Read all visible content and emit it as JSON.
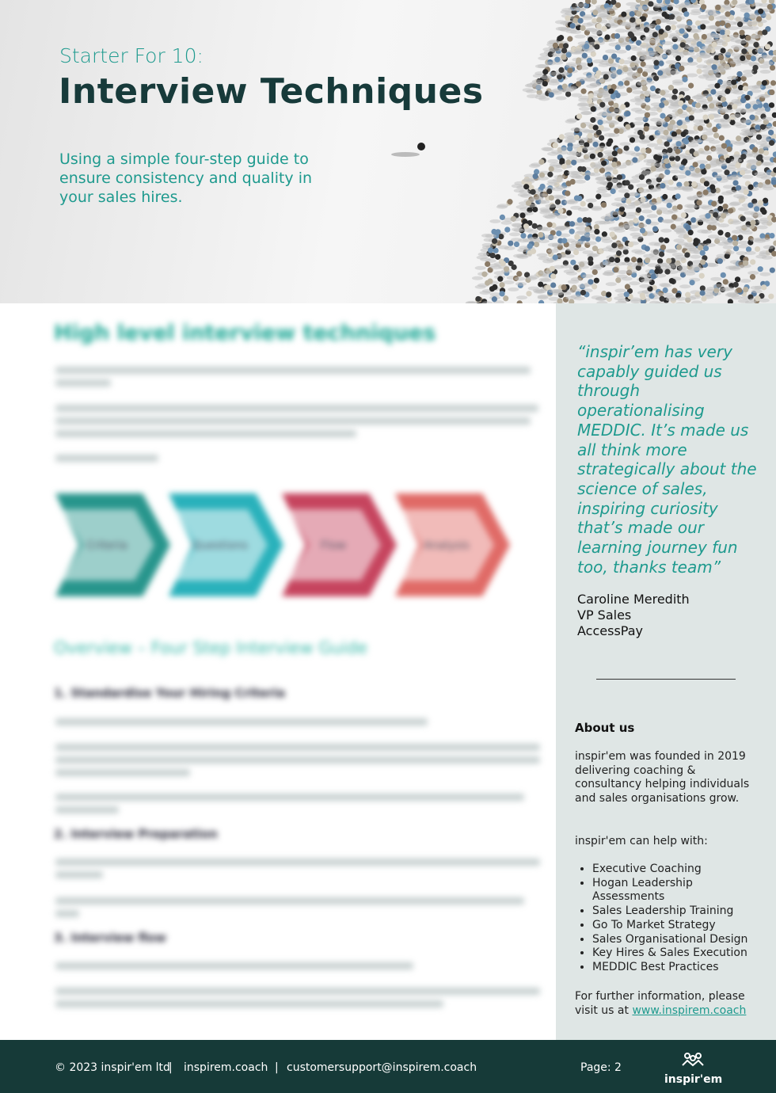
{
  "header": {
    "kicker": "Starter For 10:",
    "title": "Interview Techniques",
    "tagline": "Using a simple four-step guide to ensure consistency and quality in your sales hires."
  },
  "main": {
    "heading": "High level interview techniques",
    "steps": [
      "Criteria",
      "Questions",
      "Flow",
      "Analysis"
    ],
    "overview_heading": "Overview – Four Step Interview Guide",
    "sections": [
      "1.   Standardise Your Hiring Criteria",
      "2.   Interview Preparation",
      "3.   Interview flow"
    ]
  },
  "sidebar": {
    "quote": "“inspir’em has very capably guided us through operationalising MEDDIC. It’s made us all think more strategically about the science of sales, inspiring curiosity that’s made our learning journey fun too, thanks team”",
    "author": [
      "Caroline Meredith",
      "VP Sales",
      "AccessPay"
    ],
    "about_heading": "About us",
    "about_text": "inspir'em was founded in 2019 delivering coaching & consultancy helping individuals and sales organisations grow.",
    "help_intro": "inspir'em can help with:",
    "help_items": [
      "Executive Coaching",
      "Hogan Leadership Assessments",
      "Sales Leadership Training",
      "Go To Market Strategy",
      "Sales Organisational Design",
      "Key Hires & Sales Execution",
      "MEDDIC Best Practices"
    ],
    "further_info": "For further information, please visit us at",
    "link": "www.inspirem.coach"
  },
  "footer": {
    "copyright": "© 2023 inspir'em ltd",
    "site": "inspirem.coach",
    "email": "customersupport@inspirem.coach",
    "page": "Page: 2",
    "brand": "inspir'em"
  }
}
